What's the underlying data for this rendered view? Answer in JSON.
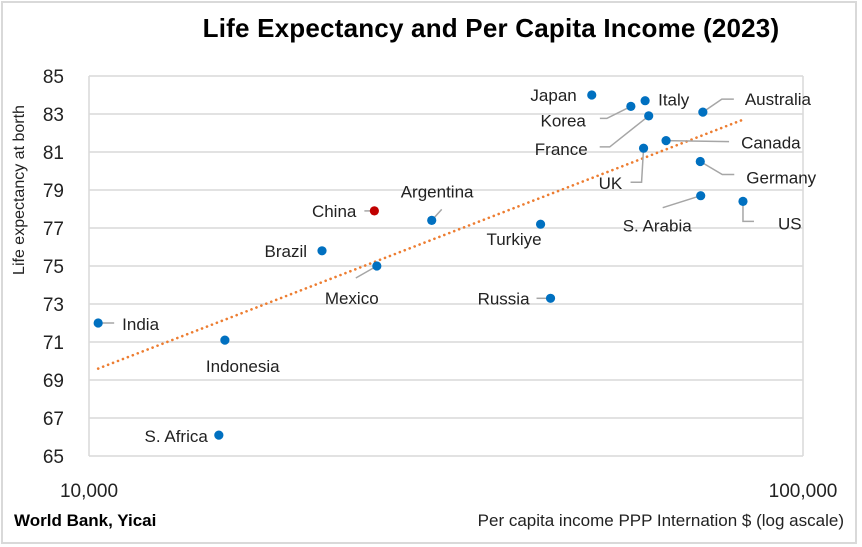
{
  "chart_data": {
    "type": "scatter",
    "title": "Life Expectancy and Per Capita Income (2023)",
    "xlabel": "Per capita income PPP Internation $ (log ascale)",
    "ylabel": "Life expectancy at borth",
    "source": "World Bank, Yicai",
    "x_scale": "log",
    "xlim": [
      10000,
      100000
    ],
    "ylim": [
      65,
      85
    ],
    "x_ticks": [
      10000,
      100000
    ],
    "x_tick_labels": [
      "10,000",
      "100,000"
    ],
    "y_ticks": [
      65,
      67,
      69,
      71,
      73,
      75,
      77,
      79,
      81,
      83,
      85
    ],
    "y_tick_labels": [
      "65",
      "67",
      "69",
      "71",
      "73",
      "75",
      "77",
      "79",
      "81",
      "83",
      "85"
    ],
    "grid": "horizontal",
    "legend": "none",
    "colors": {
      "point": "#0070C0",
      "highlight": "#C00000",
      "trendline": "#ED7D31",
      "grid": "#D9D9D9"
    },
    "points": [
      {
        "name": "India",
        "income": 10300,
        "life_expectancy": 72.0,
        "highlight": false
      },
      {
        "name": "Indonesia",
        "income": 15500,
        "life_expectancy": 71.1,
        "highlight": false
      },
      {
        "name": "S. Africa",
        "income": 15200,
        "life_expectancy": 66.1,
        "highlight": false
      },
      {
        "name": "Brazil",
        "income": 21200,
        "life_expectancy": 75.8,
        "highlight": false
      },
      {
        "name": "China",
        "income": 25100,
        "life_expectancy": 77.9,
        "highlight": true
      },
      {
        "name": "Mexico",
        "income": 25300,
        "life_expectancy": 75.0,
        "highlight": false
      },
      {
        "name": "Argentina",
        "income": 30200,
        "life_expectancy": 77.4,
        "highlight": false
      },
      {
        "name": "Turkiye",
        "income": 42900,
        "life_expectancy": 77.2,
        "highlight": false
      },
      {
        "name": "Russia",
        "income": 44300,
        "life_expectancy": 73.3,
        "highlight": false
      },
      {
        "name": "Japan",
        "income": 50600,
        "life_expectancy": 84.0,
        "highlight": false
      },
      {
        "name": "Korea",
        "income": 57400,
        "life_expectancy": 83.4,
        "highlight": false
      },
      {
        "name": "UK",
        "income": 59800,
        "life_expectancy": 81.2,
        "highlight": false
      },
      {
        "name": "Italy",
        "income": 60100,
        "life_expectancy": 83.7,
        "highlight": false
      },
      {
        "name": "France",
        "income": 60800,
        "life_expectancy": 82.9,
        "highlight": false
      },
      {
        "name": "Canada",
        "income": 64300,
        "life_expectancy": 81.6,
        "highlight": false
      },
      {
        "name": "Germany",
        "income": 71800,
        "life_expectancy": 80.5,
        "highlight": false
      },
      {
        "name": "S. Arabia",
        "income": 71900,
        "life_expectancy": 78.7,
        "highlight": false
      },
      {
        "name": "Australia",
        "income": 72400,
        "life_expectancy": 83.1,
        "highlight": false
      },
      {
        "name": "US",
        "income": 82400,
        "life_expectancy": 78.4,
        "highlight": false
      }
    ],
    "trendline": {
      "type": "logarithmic",
      "style": "dotted",
      "start": {
        "income": 10300,
        "life_expectancy": 69.6
      },
      "end": {
        "income": 82400,
        "life_expectancy": 82.7
      }
    }
  }
}
